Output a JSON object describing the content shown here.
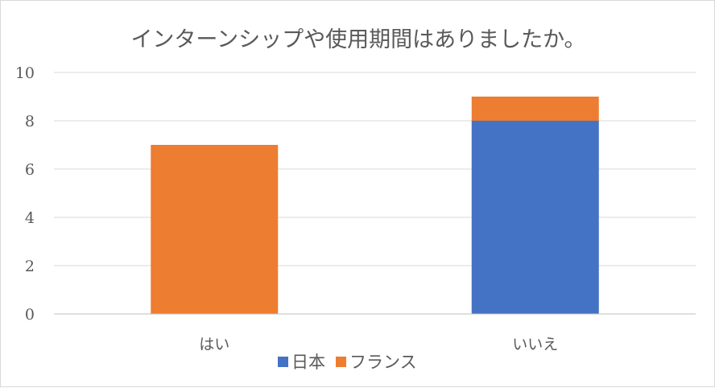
{
  "chart_data": {
    "type": "bar",
    "stacked": true,
    "title": "インターンシップや使用期間はありましたか。",
    "categories": [
      "はい",
      "いいえ"
    ],
    "series": [
      {
        "name": "日本",
        "color": "#4472C4",
        "values": [
          0,
          8
        ]
      },
      {
        "name": "フランス",
        "color": "#ED7D31",
        "values": [
          7,
          1
        ]
      }
    ],
    "ylim": [
      0,
      10
    ],
    "yticks": [
      "0",
      "2",
      "4",
      "6",
      "8",
      "10"
    ],
    "grid": true,
    "legend_position": "bottom"
  }
}
